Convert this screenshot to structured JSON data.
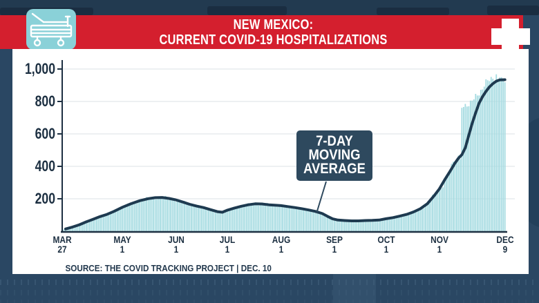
{
  "header": {
    "title_line1": "NEW MEXICO:",
    "title_line2": "CURRENT COVID-19 HOSPITALIZATIONS",
    "icons": {
      "left": "hospital-bed-icon",
      "right": "medical-cross-icon"
    }
  },
  "colors": {
    "background": "#2a4763",
    "banner_red": "#d41f2e",
    "icon_teal": "#8ad1d8",
    "panel_white": "#ffffff",
    "bar_teal": "#a5dbe1",
    "line_navy": "#1e3a50",
    "axis_ink": "#1c2f41",
    "gridline": "#e2e7ea",
    "callout_bg": "#2e495e"
  },
  "chart_data": {
    "type": "bar",
    "title": "NEW MEXICO: CURRENT COVID-19 HOSPITALIZATIONS",
    "source": "SOURCE: THE COVID TRACKING PROJECT | DEC. 10",
    "x_axis": {
      "unit": "date (day index from Mar 27)",
      "range_days": [
        0,
        257
      ],
      "ticks": [
        {
          "line1": "MAR",
          "line2": "27",
          "day": 0
        },
        {
          "line1": "MAY",
          "line2": "1",
          "day": 35
        },
        {
          "line1": "JUN",
          "line2": "1",
          "day": 66
        },
        {
          "line1": "JUL",
          "line2": "1",
          "day": 96
        },
        {
          "line1": "AUG",
          "line2": "1",
          "day": 127
        },
        {
          "line1": "SEP",
          "line2": "1",
          "day": 158
        },
        {
          "line1": "OCT",
          "line2": "1",
          "day": 188
        },
        {
          "line1": "NOV",
          "line2": "1",
          "day": 219
        },
        {
          "line1": "DEC",
          "line2": "9",
          "day": 257
        }
      ]
    },
    "y_axis": {
      "ylim": [
        0,
        1000
      ],
      "ticks": [
        200,
        400,
        600,
        800,
        1000
      ],
      "tick_labels": [
        "200",
        "400",
        "600",
        "800",
        "1,000"
      ],
      "gridlines": true
    },
    "annotation": {
      "lines": {
        "l1": "7-DAY",
        "l2": "MOVING",
        "l3": "AVERAGE"
      },
      "points_to": "moving-average line just before Sep 1 (~day 148, value ~118)"
    },
    "series": [
      {
        "name": "daily current COVID-19 hospitalizations",
        "type": "bar",
        "color": "#a5dbe1",
        "note": "one thin bar per day hugging the 7-day average; bars jump from ~470 to ~755 at day 232 (mid-Nov) and peak near 955-965 in early Dec",
        "late_bar_anchors": [
          [
            232,
            755
          ],
          [
            233,
            768
          ],
          [
            235,
            780
          ],
          [
            237,
            796
          ],
          [
            239,
            812
          ],
          [
            241,
            842
          ],
          [
            243,
            868
          ],
          [
            245,
            895
          ],
          [
            247,
            928
          ],
          [
            249,
            946
          ],
          [
            250,
            956
          ],
          [
            251,
            932
          ],
          [
            252,
            946
          ],
          [
            253,
            926
          ],
          [
            254,
            950
          ],
          [
            255,
            936
          ],
          [
            256,
            946
          ],
          [
            257,
            938
          ]
        ]
      },
      {
        "name": "7-day moving average",
        "type": "line",
        "color": "#1e3a50",
        "points": [
          [
            0,
            8
          ],
          [
            2,
            14
          ],
          [
            6,
            26
          ],
          [
            10,
            40
          ],
          [
            14,
            58
          ],
          [
            18,
            74
          ],
          [
            22,
            90
          ],
          [
            26,
            104
          ],
          [
            30,
            122
          ],
          [
            35,
            148
          ],
          [
            40,
            170
          ],
          [
            45,
            188
          ],
          [
            50,
            201
          ],
          [
            54,
            207
          ],
          [
            58,
            208
          ],
          [
            62,
            202
          ],
          [
            66,
            193
          ],
          [
            70,
            180
          ],
          [
            74,
            166
          ],
          [
            78,
            155
          ],
          [
            82,
            146
          ],
          [
            86,
            133
          ],
          [
            90,
            121
          ],
          [
            93,
            117
          ],
          [
            96,
            130
          ],
          [
            100,
            143
          ],
          [
            104,
            154
          ],
          [
            108,
            163
          ],
          [
            112,
            169
          ],
          [
            116,
            168
          ],
          [
            120,
            163
          ],
          [
            124,
            160
          ],
          [
            127,
            158
          ],
          [
            131,
            152
          ],
          [
            135,
            146
          ],
          [
            139,
            139
          ],
          [
            143,
            131
          ],
          [
            147,
            122
          ],
          [
            151,
            109
          ],
          [
            154,
            92
          ],
          [
            157,
            76
          ],
          [
            160,
            69
          ],
          [
            164,
            66
          ],
          [
            168,
            64
          ],
          [
            172,
            64
          ],
          [
            176,
            66
          ],
          [
            180,
            67
          ],
          [
            184,
            69
          ],
          [
            188,
            77
          ],
          [
            192,
            84
          ],
          [
            196,
            93
          ],
          [
            200,
            104
          ],
          [
            204,
            119
          ],
          [
            208,
            139
          ],
          [
            212,
            170
          ],
          [
            216,
            220
          ],
          [
            219,
            262
          ],
          [
            222,
            316
          ],
          [
            225,
            367
          ],
          [
            228,
            420
          ],
          [
            230,
            450
          ],
          [
            232,
            472
          ],
          [
            234,
            515
          ],
          [
            236,
            590
          ],
          [
            238,
            665
          ],
          [
            240,
            730
          ],
          [
            242,
            790
          ],
          [
            244,
            830
          ],
          [
            246,
            862
          ],
          [
            248,
            890
          ],
          [
            250,
            910
          ],
          [
            252,
            925
          ],
          [
            254,
            933
          ],
          [
            257,
            934
          ]
        ]
      }
    ]
  }
}
